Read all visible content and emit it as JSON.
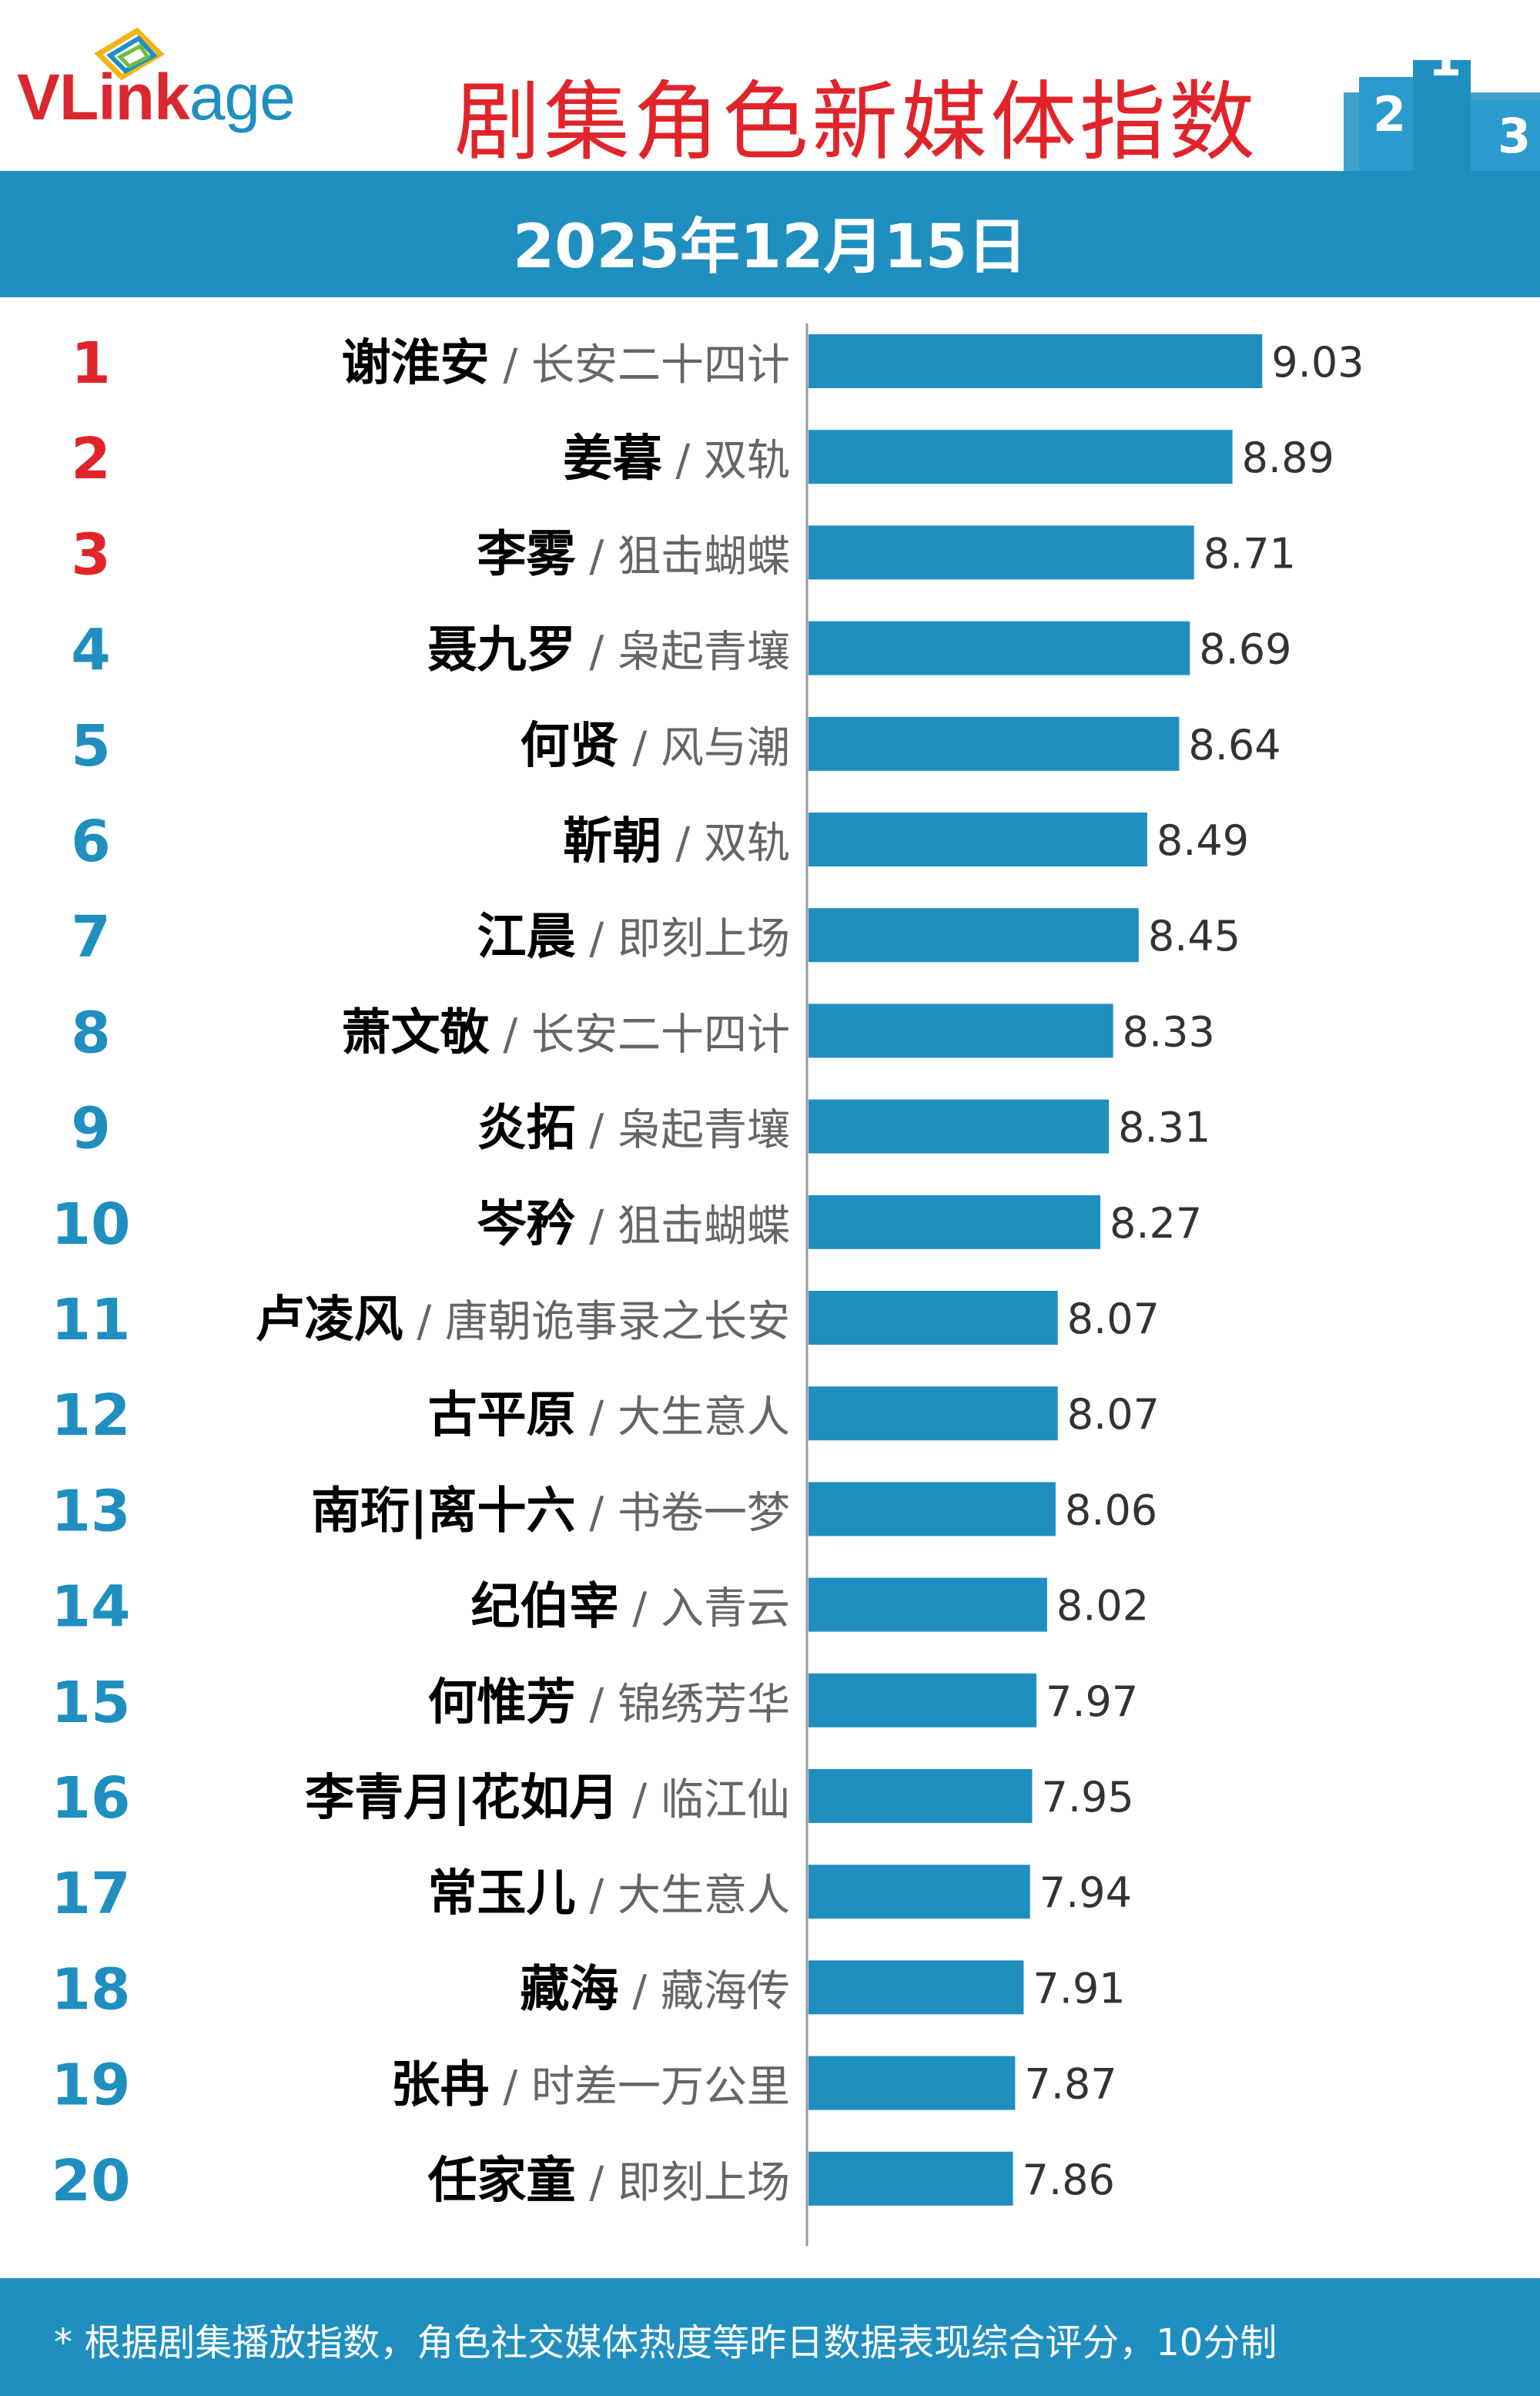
{
  "header": {
    "logo_parts": {
      "v": "V",
      "link": "Link",
      "age": "age"
    },
    "title": "剧集角色新媒体指数",
    "date": "2025年12月15日"
  },
  "footer": {
    "note": "* 根据剧集播放指数，角色社交媒体热度等昨日数据表现综合评分，10分制"
  },
  "colors": {
    "bar": "#1f8fc0",
    "rank_top3": "#e0242a",
    "rank_other": "#1f8fc0",
    "title": "#e0242a"
  },
  "chart_data": {
    "type": "bar",
    "orientation": "horizontal",
    "title": "剧集角色新媒体指数",
    "subtitle": "2025年12月15日",
    "xlim": [
      6.9,
      9.3
    ],
    "items": [
      {
        "rank": "1",
        "role": "谢淮安",
        "drama": "长安二十四计",
        "value": 9.03,
        "value_label": "9.03"
      },
      {
        "rank": "2",
        "role": "姜暮",
        "drama": "双轨",
        "value": 8.89,
        "value_label": "8.89"
      },
      {
        "rank": "3",
        "role": "李雾",
        "drama": "狙击蝴蝶",
        "value": 8.71,
        "value_label": "8.71"
      },
      {
        "rank": "4",
        "role": "聂九罗",
        "drama": "枭起青壤",
        "value": 8.69,
        "value_label": "8.69"
      },
      {
        "rank": "5",
        "role": "何贤",
        "drama": "风与潮",
        "value": 8.64,
        "value_label": "8.64"
      },
      {
        "rank": "6",
        "role": "靳朝",
        "drama": "双轨",
        "value": 8.49,
        "value_label": "8.49"
      },
      {
        "rank": "7",
        "role": "江晨",
        "drama": "即刻上场",
        "value": 8.45,
        "value_label": "8.45"
      },
      {
        "rank": "8",
        "role": "萧文敬",
        "drama": "长安二十四计",
        "value": 8.33,
        "value_label": "8.33"
      },
      {
        "rank": "9",
        "role": "炎拓",
        "drama": "枭起青壤",
        "value": 8.31,
        "value_label": "8.31"
      },
      {
        "rank": "10",
        "role": "岑矜",
        "drama": "狙击蝴蝶",
        "value": 8.27,
        "value_label": "8.27"
      },
      {
        "rank": "11",
        "role": "卢凌风",
        "drama": "唐朝诡事录之长安",
        "value": 8.07,
        "value_label": "8.07"
      },
      {
        "rank": "12",
        "role": "古平原",
        "drama": "大生意人",
        "value": 8.07,
        "value_label": "8.07"
      },
      {
        "rank": "13",
        "role": "南珩|离十六",
        "drama": "书卷一梦",
        "value": 8.06,
        "value_label": "8.06"
      },
      {
        "rank": "14",
        "role": "纪伯宰",
        "drama": "入青云",
        "value": 8.02,
        "value_label": "8.02"
      },
      {
        "rank": "15",
        "role": "何惟芳",
        "drama": "锦绣芳华",
        "value": 7.97,
        "value_label": "7.97"
      },
      {
        "rank": "16",
        "role": "李青月|花如月",
        "drama": "临江仙",
        "value": 7.95,
        "value_label": "7.95"
      },
      {
        "rank": "17",
        "role": "常玉儿",
        "drama": "大生意人",
        "value": 7.94,
        "value_label": "7.94"
      },
      {
        "rank": "18",
        "role": "藏海",
        "drama": "藏海传",
        "value": 7.91,
        "value_label": "7.91"
      },
      {
        "rank": "19",
        "role": "张冉",
        "drama": "时差一万公里",
        "value": 7.87,
        "value_label": "7.87"
      },
      {
        "rank": "20",
        "role": "任家童",
        "drama": "即刻上场",
        "value": 7.86,
        "value_label": "7.86"
      }
    ],
    "separator": " / "
  }
}
